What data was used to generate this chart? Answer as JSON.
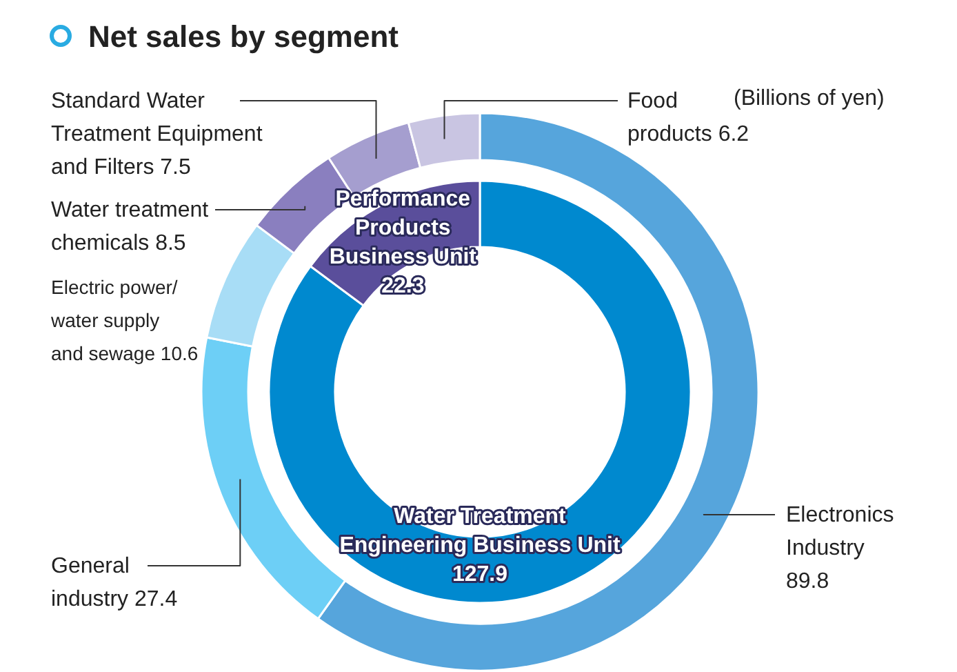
{
  "chart_data": [
    {
      "type": "donut",
      "title": "Net sales by segment",
      "annotations": [
        "(Billions of yen)"
      ],
      "data_labels": true,
      "categories": [
        "Electronics Industry",
        "General industry",
        "Electric power/ water supply and sewage",
        "Water treatment chemicals",
        "Standard Water Treatment Equipment and Filters",
        "Food products"
      ],
      "values": [
        89.8,
        27.4,
        10.6,
        8.5,
        7.5,
        6.2
      ],
      "colors": [
        "#56a5dc",
        "#6dcff6",
        "#a8ddf6",
        "#8a7fbf",
        "#a59ecf",
        "#c9c5e2"
      ]
    },
    {
      "type": "donut",
      "data_labels": true,
      "categories": [
        "Water Treatment Engineering Business Unit",
        "Performance Products Business Unit"
      ],
      "values": [
        127.9,
        22.3
      ],
      "colors": [
        "#0089cf",
        "#5a4e9b"
      ]
    }
  ]
}
